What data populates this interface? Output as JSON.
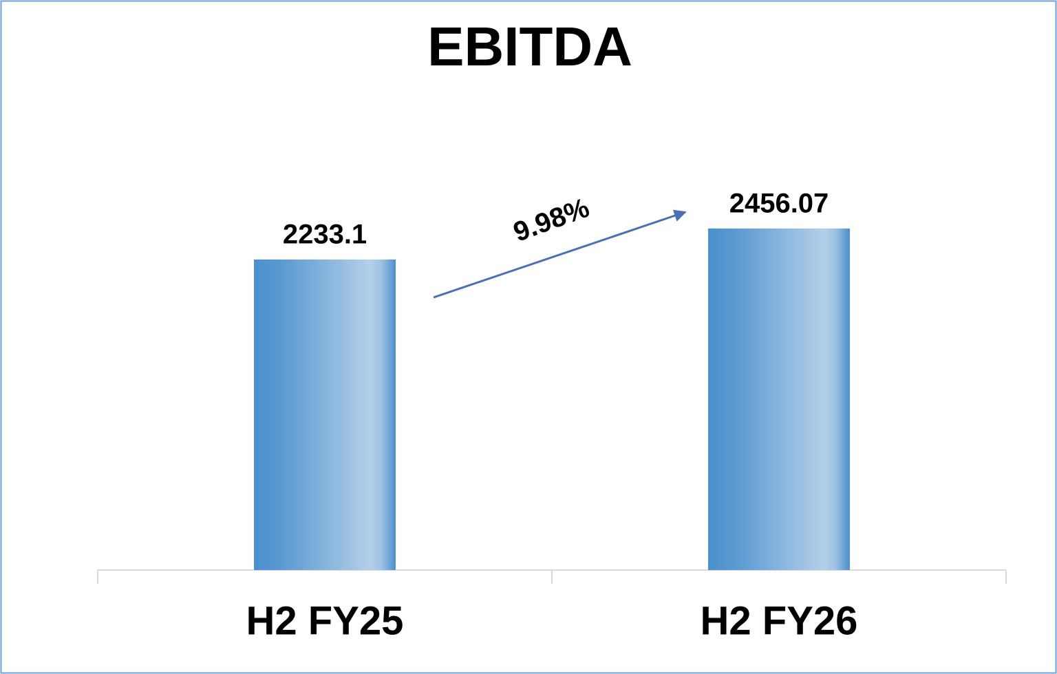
{
  "chart_data": {
    "type": "bar",
    "title": "EBITDA",
    "categories": [
      "H2 FY25",
      "H2 FY26"
    ],
    "values": [
      2233.1,
      2456.07
    ],
    "color": "#4a8fcc",
    "ylim": [
      0,
      3000
    ],
    "annotation": "9.98%"
  }
}
